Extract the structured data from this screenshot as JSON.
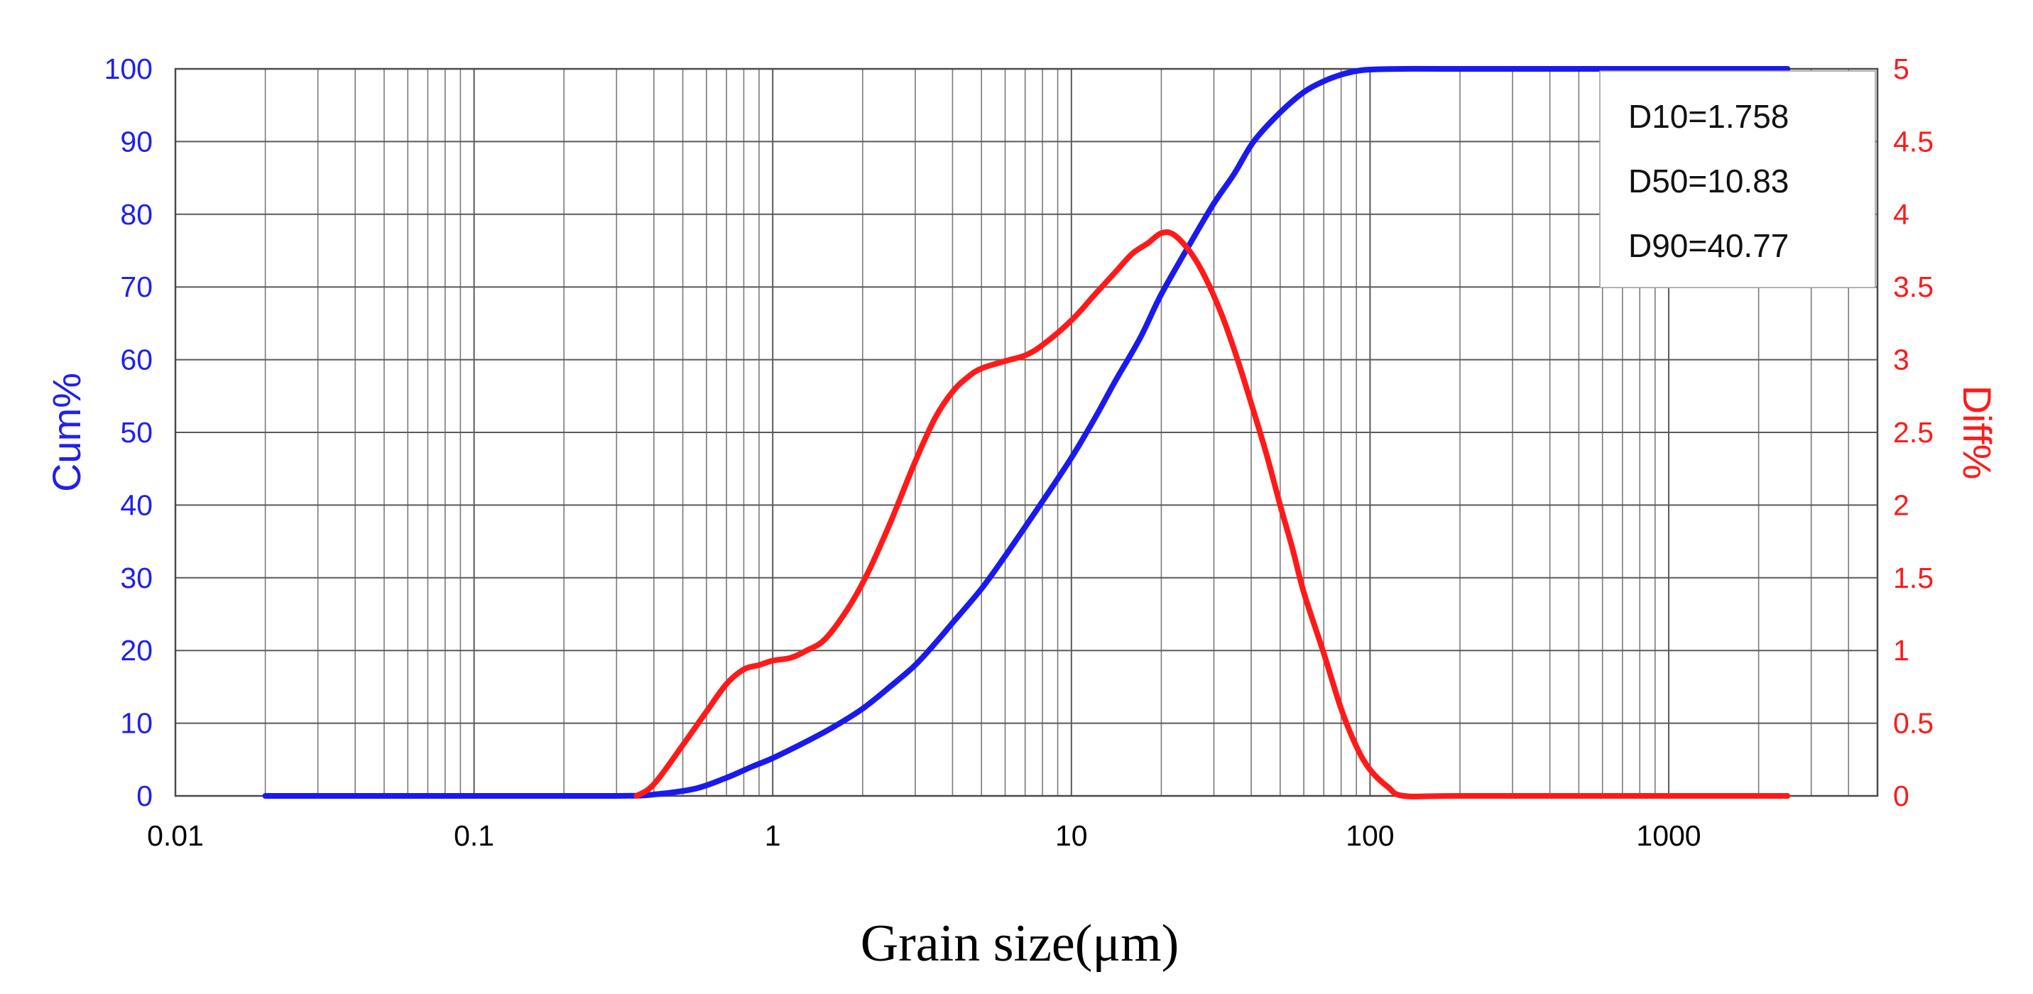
{
  "chart_data": {
    "type": "line",
    "title": "",
    "xlabel": "Grain size(μm)",
    "ylabel_left": "Cum%",
    "ylabel_right": "Diff%",
    "x_scale": "log",
    "xlim": [
      0.01,
      5000
    ],
    "ylim_left": [
      0,
      100
    ],
    "ylim_right": [
      0,
      5
    ],
    "grid": true,
    "x_ticks": [
      "0.01",
      "0.1",
      "1",
      "10",
      "100",
      "1000"
    ],
    "y_left_ticks": [
      "0",
      "10",
      "20",
      "30",
      "40",
      "50",
      "60",
      "70",
      "80",
      "90",
      "100"
    ],
    "y_right_ticks": [
      "0",
      "0.5",
      "1",
      "1.5",
      "2",
      "2.5",
      "3",
      "3.5",
      "4",
      "4.5",
      "5"
    ],
    "colors": {
      "cum": "#1a1aee",
      "diff": "#ff1a1a",
      "left_axis": "#2020ee",
      "right_axis": "#ff1a1a"
    },
    "series": [
      {
        "name": "Cum%",
        "axis": "left",
        "x": [
          0.02,
          0.1,
          0.3,
          0.4,
          0.55,
          0.7,
          0.85,
          1.0,
          1.3,
          1.6,
          2.0,
          2.5,
          3.0,
          3.5,
          4.0,
          5.0,
          6.0,
          7.0,
          8.0,
          10.0,
          12.0,
          14.0,
          17.0,
          20.0,
          25.0,
          30.0,
          35.0,
          40.77,
          50.0,
          60.0,
          70.0,
          80.0,
          90.0,
          100.0,
          130.0,
          200.0,
          1000.0,
          2500.0
        ],
        "values": [
          0,
          0,
          0,
          0.2,
          1.0,
          2.5,
          4.0,
          5.2,
          7.5,
          9.5,
          12.0,
          15.2,
          18.0,
          21.0,
          23.8,
          28.5,
          33.0,
          37.0,
          40.5,
          46.5,
          52.0,
          57.0,
          63.0,
          69.0,
          76.0,
          81.5,
          85.5,
          90.0,
          94.0,
          96.8,
          98.3,
          99.2,
          99.7,
          99.9,
          100,
          100,
          100,
          100
        ]
      },
      {
        "name": "Diff%",
        "axis": "right",
        "x": [
          0.35,
          0.4,
          0.5,
          0.6,
          0.7,
          0.8,
          0.9,
          1.0,
          1.15,
          1.3,
          1.5,
          1.8,
          2.1,
          2.5,
          3.0,
          3.5,
          4.0,
          4.5,
          5.0,
          6.0,
          7.0,
          8.0,
          10.0,
          12.0,
          14.0,
          16.0,
          18.0,
          20.0,
          22.0,
          25.0,
          28.0,
          32.0,
          36.0,
          40.0,
          45.0,
          50.0,
          55.0,
          60.0,
          70.0,
          80.0,
          90.0,
          100.0,
          115.0,
          130.0,
          200.0,
          1000.0,
          2500.0
        ],
        "values": [
          0,
          0.08,
          0.35,
          0.58,
          0.77,
          0.87,
          0.9,
          0.93,
          0.95,
          1.0,
          1.08,
          1.3,
          1.55,
          1.9,
          2.3,
          2.6,
          2.78,
          2.88,
          2.94,
          2.99,
          3.03,
          3.1,
          3.27,
          3.45,
          3.6,
          3.73,
          3.8,
          3.87,
          3.86,
          3.74,
          3.57,
          3.3,
          3.0,
          2.7,
          2.35,
          2.0,
          1.7,
          1.4,
          0.98,
          0.6,
          0.34,
          0.18,
          0.06,
          0.0,
          0,
          0,
          0
        ]
      }
    ],
    "annotations": [
      "D10=1.758",
      "D50=10.83",
      "D90=40.77"
    ],
    "annotation_placement": "top-right"
  }
}
